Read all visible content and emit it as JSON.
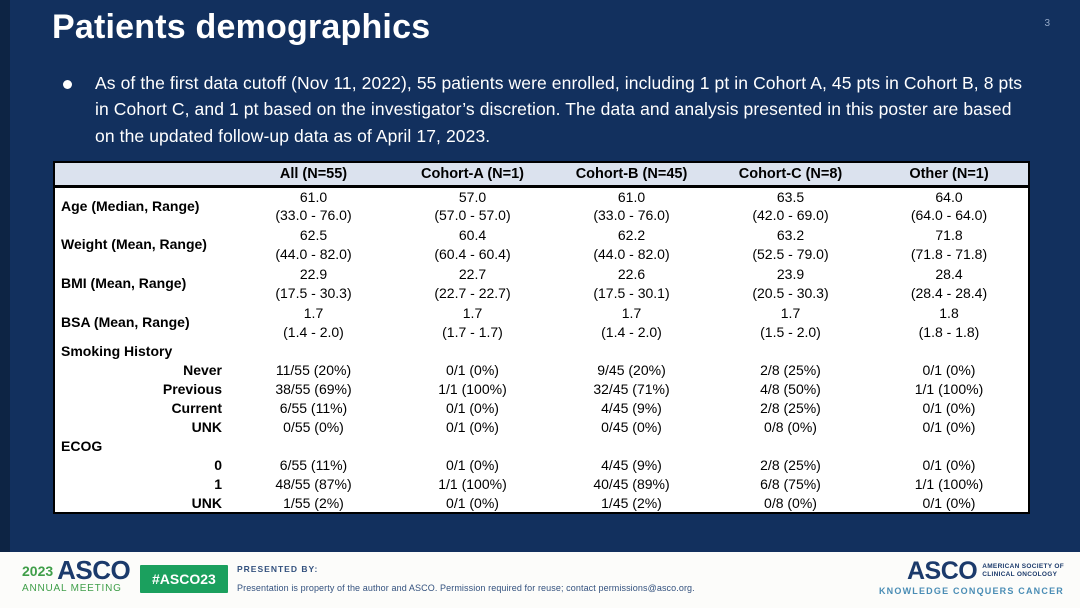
{
  "slide": {
    "title": "Patients demographics",
    "page_number": "3",
    "bullet_text": "As of the first data cutoff (Nov 11, 2022), 55 patients were enrolled, including 1 pt in Cohort A, 45 pts in Cohort B, 8 pts in Cohort C, and 1 pt based on the investigator’s discretion. The data and analysis presented in this poster are based on the updated follow-up data as of April 17, 2023."
  },
  "table": {
    "columns": [
      "",
      "All (N=55)",
      "Cohort-A (N=1)",
      "Cohort-B (N=45)",
      "Cohort-C (N=8)",
      "Other (N=1)"
    ],
    "rows": [
      {
        "type": "stat",
        "label": "Age (Median, Range)",
        "values": [
          "61.0\n(33.0 - 76.0)",
          "57.0\n(57.0 - 57.0)",
          "61.0\n(33.0 - 76.0)",
          "63.5\n(42.0 - 69.0)",
          "64.0\n(64.0 - 64.0)"
        ]
      },
      {
        "type": "stat",
        "label": "Weight (Mean, Range)",
        "values": [
          "62.5\n(44.0 - 82.0)",
          "60.4\n(60.4 - 60.4)",
          "62.2\n(44.0 - 82.0)",
          "63.2\n(52.5 - 79.0)",
          "71.8\n(71.8 - 71.8)"
        ]
      },
      {
        "type": "stat",
        "label": "BMI (Mean, Range)",
        "values": [
          "22.9\n(17.5 - 30.3)",
          "22.7\n(22.7 - 22.7)",
          "22.6\n(17.5 - 30.1)",
          "23.9\n(20.5 - 30.3)",
          "28.4\n(28.4 - 28.4)"
        ]
      },
      {
        "type": "stat",
        "label": "BSA (Mean, Range)",
        "values": [
          "1.7\n(1.4 - 2.0)",
          "1.7\n(1.7 - 1.7)",
          "1.7\n(1.4 - 2.0)",
          "1.7\n(1.5 - 2.0)",
          "1.8\n(1.8 - 1.8)"
        ]
      },
      {
        "type": "section",
        "label": "Smoking History",
        "values": [
          "",
          "",
          "",
          "",
          ""
        ]
      },
      {
        "type": "sub",
        "label": "Never",
        "values": [
          "11/55 (20%)",
          "0/1 (0%)",
          "9/45 (20%)",
          "2/8 (25%)",
          "0/1 (0%)"
        ]
      },
      {
        "type": "sub",
        "label": "Previous",
        "values": [
          "38/55 (69%)",
          "1/1 (100%)",
          "32/45 (71%)",
          "4/8 (50%)",
          "1/1 (100%)"
        ]
      },
      {
        "type": "sub",
        "label": "Current",
        "values": [
          "6/55 (11%)",
          "0/1 (0%)",
          "4/45 (9%)",
          "2/8 (25%)",
          "0/1 (0%)"
        ]
      },
      {
        "type": "sub",
        "label": "UNK",
        "values": [
          "0/55 (0%)",
          "0/1 (0%)",
          "0/45 (0%)",
          "0/8 (0%)",
          "0/1 (0%)"
        ]
      },
      {
        "type": "section",
        "label": "ECOG",
        "values": [
          "",
          "",
          "",
          "",
          ""
        ]
      },
      {
        "type": "sub",
        "label": "0",
        "values": [
          "6/55 (11%)",
          "0/1 (0%)",
          "4/45 (9%)",
          "2/8 (25%)",
          "0/1 (0%)"
        ]
      },
      {
        "type": "sub",
        "label": "1",
        "values": [
          "48/55 (87%)",
          "1/1 (100%)",
          "40/45 (89%)",
          "6/8 (75%)",
          "1/1 (100%)"
        ]
      },
      {
        "type": "sub",
        "label": "UNK",
        "values": [
          "1/55 (2%)",
          "0/1 (0%)",
          "1/45 (2%)",
          "0/8 (0%)",
          "0/1 (0%)"
        ]
      }
    ]
  },
  "footer": {
    "meeting_logo": {
      "year": "2023",
      "brand": "ASCO",
      "subtitle": "ANNUAL MEETING"
    },
    "hashtag_badge": "#ASCO23",
    "presented_by_label": "PRESENTED BY:",
    "permission_text": "Presentation is property of the author and ASCO. Permission required for reuse; contact permissions@asco.org.",
    "asco_logo": {
      "brand": "ASCO",
      "org_line1": "AMERICAN SOCIETY OF",
      "org_line2": "CLINICAL ONCOLOGY",
      "tagline": "KNOWLEDGE CONQUERS CANCER"
    }
  },
  "colors": {
    "slide_bg": "#12305e",
    "slide_left_edge": "#0d2444",
    "table_header_bg": "#dbe2ee",
    "badge_green": "#1ba05e",
    "logo_green": "#3f9e49",
    "asco_navy": "#1b3a6b",
    "tagline_blue": "#4a8db5",
    "text_white": "#ffffff",
    "table_text": "#000000"
  }
}
